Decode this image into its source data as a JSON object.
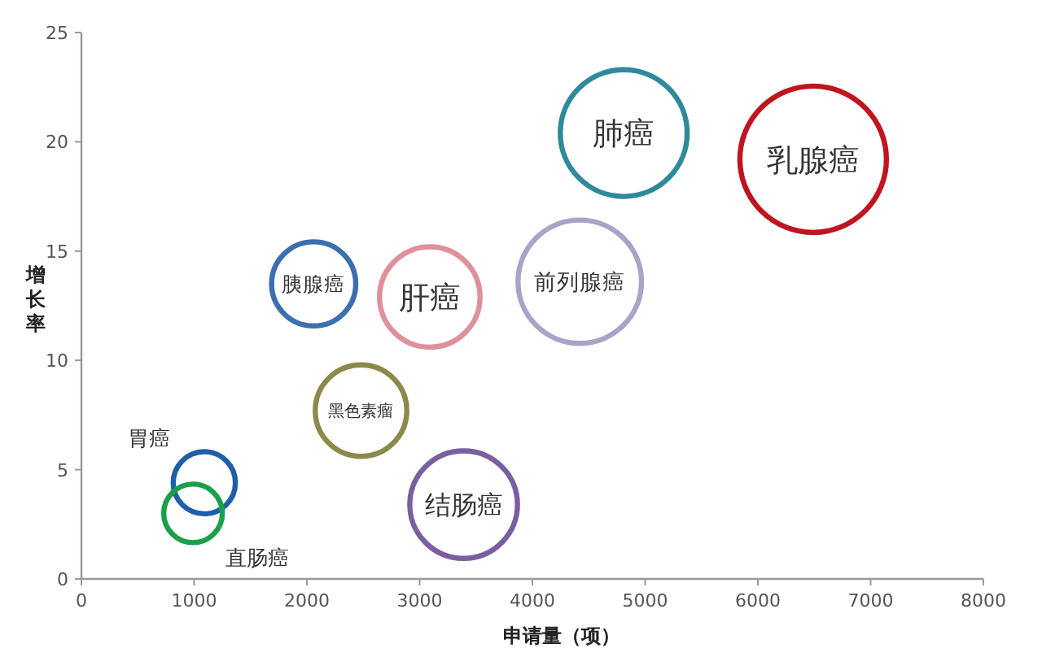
{
  "chart_data": {
    "type": "bubble",
    "xlabel": "申请量（项）",
    "ylabel": "增长率",
    "xlim": [
      0,
      8000
    ],
    "ylim": [
      0,
      25
    ],
    "xticks": [
      0,
      1000,
      2000,
      3000,
      4000,
      5000,
      6000,
      7000,
      8000
    ],
    "yticks": [
      0,
      5,
      10,
      15,
      20,
      25
    ],
    "grid": false,
    "legend": false,
    "series": [
      {
        "name": "胃癌",
        "color": "#1f5fa8",
        "x": [
          1090
        ],
        "values": [
          4.4
        ],
        "sizes": [
          0.18
        ]
      },
      {
        "name": "直肠癌",
        "color": "#1aa04a",
        "x": [
          990
        ],
        "values": [
          3.0
        ],
        "sizes": [
          0.16
        ]
      },
      {
        "name": "黑色素瘤",
        "color": "#8b8a4a",
        "x": [
          2480
        ],
        "values": [
          7.7
        ],
        "sizes": [
          0.39
        ]
      },
      {
        "name": "结肠癌",
        "color": "#7a5fa0",
        "x": [
          3390
        ],
        "values": [
          3.4
        ],
        "sizes": [
          0.54
        ]
      },
      {
        "name": "胰腺癌",
        "color": "#3a6fb0",
        "x": [
          2060
        ],
        "values": [
          13.5
        ],
        "sizes": [
          0.33
        ]
      },
      {
        "name": "肝癌",
        "color": "#e0909a",
        "x": [
          3090
        ],
        "values": [
          12.9
        ],
        "sizes": [
          0.47
        ]
      },
      {
        "name": "前列腺癌",
        "color": "#a8a4c8",
        "x": [
          4420
        ],
        "values": [
          13.6
        ],
        "sizes": [
          0.71
        ]
      },
      {
        "name": "肺癌",
        "color": "#2e8a9a",
        "x": [
          4810
        ],
        "values": [
          20.4
        ],
        "sizes": [
          0.75
        ]
      },
      {
        "name": "乳腺癌",
        "color": "#c0141e",
        "x": [
          6490
        ],
        "values": [
          19.2
        ],
        "sizes": [
          1.0
        ]
      }
    ]
  }
}
